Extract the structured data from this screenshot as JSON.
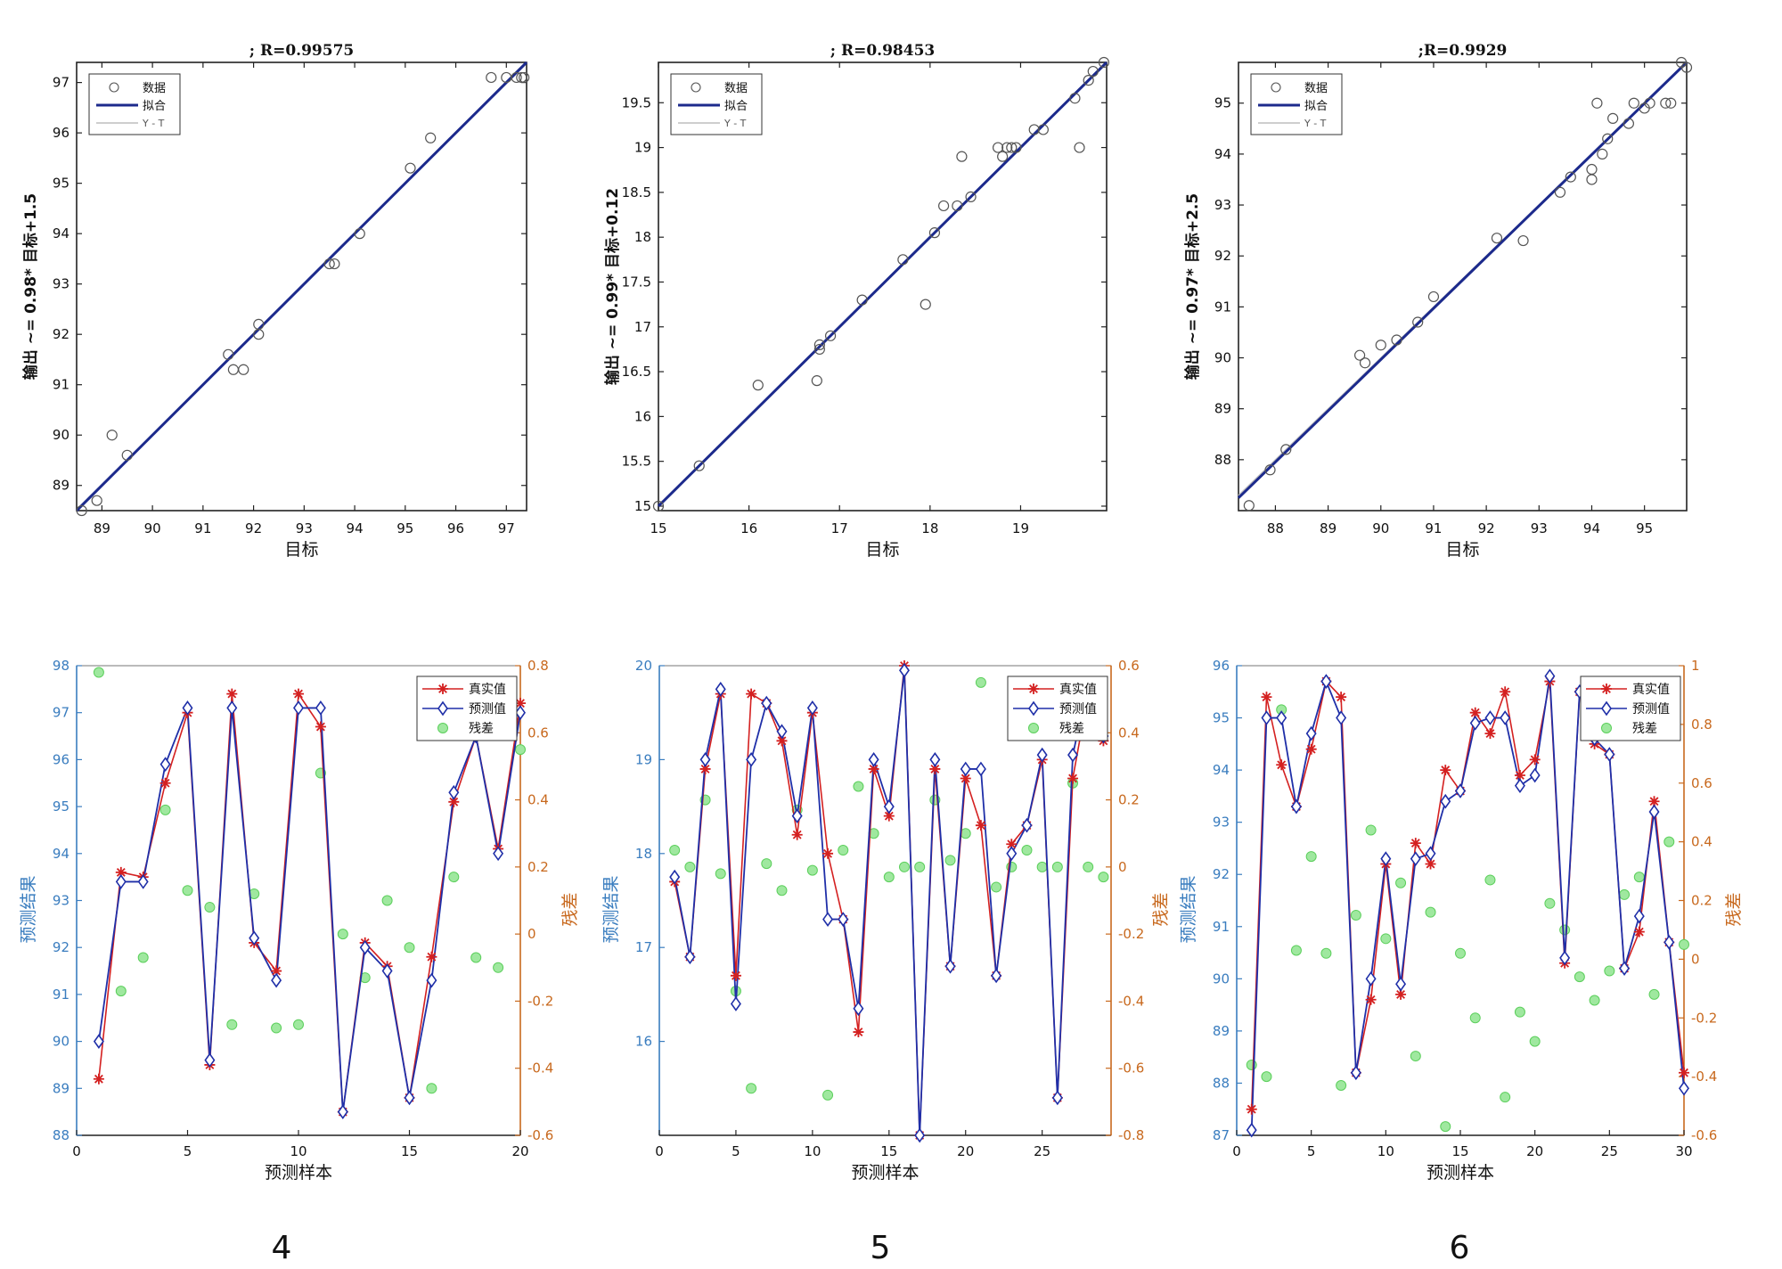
{
  "colors": {
    "fit_line": "#1c2a8c",
    "yt_line": "#bdbdbd",
    "data_marker": "#555555",
    "true_series": "#d42020",
    "pred_series": "#1f2fa8",
    "residual_fill": "#9fe89f",
    "residual_stroke": "#5ccf5c",
    "left_axis": "#3a7dbf",
    "right_axis": "#c8691e"
  },
  "regression_charts": [
    {
      "title": "; R=0.99575",
      "xlabel": "目标",
      "ylabel": "输出 ~= 0.98* 目标+1.5",
      "xticks": [
        89,
        90,
        91,
        92,
        93,
        94,
        95,
        96,
        97
      ],
      "yticks": [
        89,
        90,
        91,
        92,
        93,
        94,
        95,
        96,
        97
      ],
      "legend": [
        "数据",
        "拟合",
        "Y - T"
      ]
    },
    {
      "title": "; R=0.98453",
      "xlabel": "目标",
      "ylabel": "输出 ~= 0.99* 目标+0.12",
      "xticks": [
        15,
        16,
        17,
        18,
        19
      ],
      "yticks": [
        15,
        15.5,
        16,
        16.5,
        17,
        17.5,
        18,
        18.5,
        19,
        19.5
      ],
      "legend": [
        "数据",
        "拟合",
        "Y - T"
      ]
    },
    {
      "title": ";R=0.9929",
      "xlabel": "目标",
      "ylabel": "输出 ~= 0.97* 目标+2.5",
      "xticks": [
        88,
        89,
        90,
        91,
        92,
        93,
        94,
        95
      ],
      "yticks": [
        88,
        89,
        90,
        91,
        92,
        93,
        94,
        95
      ],
      "legend": [
        "数据",
        "拟合",
        "Y - T"
      ]
    }
  ],
  "prediction_charts": [
    {
      "xlabel": "预测样本",
      "ylabel_left": "预测结果",
      "ylabel_right": "残差",
      "xticks": [
        0,
        5,
        10,
        15,
        20
      ],
      "yticks_left": [
        88,
        89,
        90,
        91,
        92,
        93,
        94,
        95,
        96,
        97,
        98
      ],
      "yticks_right": [
        -0.6,
        -0.4,
        -0.2,
        0,
        0.2,
        0.4,
        0.6,
        0.8
      ],
      "legend": [
        "真实值",
        "预测值",
        "残差"
      ],
      "panel_label": "4"
    },
    {
      "xlabel": "预测样本",
      "ylabel_left": "预测结果",
      "ylabel_right": "残差",
      "xticks": [
        0,
        5,
        10,
        15,
        20,
        25
      ],
      "yticks_left": [
        16,
        17,
        18,
        19,
        20
      ],
      "yticks_right": [
        -0.8,
        -0.6,
        -0.4,
        -0.2,
        0,
        0.2,
        0.4,
        0.6
      ],
      "legend": [
        "真实值",
        "预测值",
        "残差"
      ],
      "panel_label": "5"
    },
    {
      "xlabel": "预测样本",
      "ylabel_left": "预测结果",
      "ylabel_right": "残差",
      "xticks": [
        0,
        5,
        10,
        15,
        20,
        25,
        30
      ],
      "yticks_left": [
        87,
        88,
        89,
        90,
        91,
        92,
        93,
        94,
        95,
        96
      ],
      "yticks_right": [
        -0.6,
        -0.4,
        -0.2,
        0,
        0.2,
        0.4,
        0.6,
        0.8,
        1
      ],
      "legend": [
        "真实值",
        "预测值",
        "残差"
      ],
      "panel_label": "6"
    }
  ],
  "chart_data": [
    {
      "type": "scatter",
      "title": "; R=0.99575",
      "xlabel": "目标",
      "ylabel": "输出 ~= 0.98* 目标+1.5",
      "xlim": [
        88.5,
        97.4
      ],
      "ylim": [
        88.5,
        97.4
      ],
      "grid": false,
      "legend_position": "top-left",
      "fit": {
        "slope": 0.98,
        "intercept": 1.5
      },
      "series": [
        {
          "name": "数据",
          "points": [
            [
              88.6,
              88.5
            ],
            [
              88.9,
              88.7
            ],
            [
              89.2,
              90.0
            ],
            [
              89.5,
              89.6
            ],
            [
              91.5,
              91.6
            ],
            [
              91.6,
              91.3
            ],
            [
              91.8,
              91.3
            ],
            [
              92.1,
              92.2
            ],
            [
              92.1,
              92.0
            ],
            [
              93.5,
              93.4
            ],
            [
              93.6,
              93.4
            ],
            [
              94.1,
              94.0
            ],
            [
              95.1,
              95.3
            ],
            [
              95.5,
              95.9
            ],
            [
              96.7,
              97.1
            ],
            [
              97.0,
              97.1
            ],
            [
              97.2,
              97.1
            ],
            [
              97.3,
              97.1
            ],
            [
              97.35,
              97.1
            ]
          ]
        },
        {
          "name": "拟合",
          "line": [
            [
              88.5,
              88.5
            ],
            [
              97.4,
              97.4
            ]
          ]
        },
        {
          "name": "Y - T",
          "line": [
            [
              88.5,
              88.5
            ],
            [
              97.4,
              97.4
            ]
          ]
        }
      ]
    },
    {
      "type": "scatter",
      "title": "; R=0.98453",
      "xlabel": "目标",
      "ylabel": "输出 ~= 0.99* 目标+0.12",
      "xlim": [
        15,
        19.95
      ],
      "ylim": [
        14.95,
        19.95
      ],
      "grid": false,
      "legend_position": "top-left",
      "fit": {
        "slope": 0.99,
        "intercept": 0.12
      },
      "series": [
        {
          "name": "数据",
          "points": [
            [
              15.0,
              15.0
            ],
            [
              15.45,
              15.45
            ],
            [
              16.1,
              16.35
            ],
            [
              16.75,
              16.4
            ],
            [
              16.78,
              16.75
            ],
            [
              16.78,
              16.8
            ],
            [
              16.9,
              16.9
            ],
            [
              17.25,
              17.3
            ],
            [
              17.7,
              17.75
            ],
            [
              17.95,
              17.25
            ],
            [
              18.05,
              18.05
            ],
            [
              18.15,
              18.35
            ],
            [
              18.3,
              18.35
            ],
            [
              18.35,
              18.9
            ],
            [
              18.45,
              18.45
            ],
            [
              18.75,
              19.0
            ],
            [
              18.8,
              18.9
            ],
            [
              18.85,
              19.0
            ],
            [
              18.9,
              19.0
            ],
            [
              18.95,
              19.0
            ],
            [
              19.15,
              19.2
            ],
            [
              19.25,
              19.2
            ],
            [
              19.6,
              19.55
            ],
            [
              19.65,
              19.0
            ],
            [
              19.75,
              19.75
            ],
            [
              19.8,
              19.85
            ],
            [
              19.92,
              19.95
            ]
          ]
        },
        {
          "name": "拟合",
          "line": [
            [
              15.0,
              15.0
            ],
            [
              19.95,
              19.95
            ]
          ]
        },
        {
          "name": "Y - T",
          "line": [
            [
              15.0,
              15.0
            ],
            [
              19.95,
              19.95
            ]
          ]
        }
      ]
    },
    {
      "type": "scatter",
      "title": ";R=0.9929",
      "xlabel": "目标",
      "ylabel": "输出 ~= 0.97* 目标+2.5",
      "xlim": [
        87.3,
        95.8
      ],
      "ylim": [
        87.0,
        95.8
      ],
      "grid": false,
      "legend_position": "top-left",
      "fit": {
        "slope": 0.97,
        "intercept": 2.5
      },
      "series": [
        {
          "name": "数据",
          "points": [
            [
              87.5,
              87.1
            ],
            [
              87.9,
              87.8
            ],
            [
              88.2,
              88.2
            ],
            [
              89.6,
              90.05
            ],
            [
              89.7,
              89.9
            ],
            [
              90.0,
              90.25
            ],
            [
              90.3,
              90.35
            ],
            [
              90.7,
              90.7
            ],
            [
              91.0,
              91.2
            ],
            [
              92.2,
              92.35
            ],
            [
              92.7,
              92.3
            ],
            [
              93.4,
              93.25
            ],
            [
              93.6,
              93.55
            ],
            [
              94.0,
              93.5
            ],
            [
              94.0,
              93.7
            ],
            [
              94.1,
              95.0
            ],
            [
              94.2,
              94.0
            ],
            [
              94.3,
              94.3
            ],
            [
              94.4,
              94.7
            ],
            [
              94.7,
              94.6
            ],
            [
              94.8,
              95.0
            ],
            [
              95.0,
              94.9
            ],
            [
              95.1,
              95.0
            ],
            [
              95.4,
              95.0
            ],
            [
              95.5,
              95.0
            ],
            [
              95.7,
              95.8
            ],
            [
              95.8,
              95.7
            ]
          ]
        },
        {
          "name": "拟合",
          "line": [
            [
              87.3,
              87.25
            ],
            [
              95.8,
              95.8
            ]
          ]
        },
        {
          "name": "Y - T",
          "line": [
            [
              87.3,
              87.3
            ],
            [
              95.8,
              95.8
            ]
          ]
        }
      ]
    },
    {
      "type": "line",
      "xlabel": "预测样本",
      "ylabel": "预测结果",
      "ylabel_right": "残差",
      "xlim": [
        0,
        20
      ],
      "ylim": [
        88,
        98
      ],
      "ylim_right": [
        -0.6,
        0.8
      ],
      "grid": false,
      "legend_position": "top-right",
      "x": [
        1,
        2,
        3,
        4,
        5,
        6,
        7,
        8,
        9,
        10,
        11,
        12,
        13,
        14,
        15,
        16,
        17,
        18,
        19,
        20
      ],
      "series": [
        {
          "name": "真实值",
          "axis": "left",
          "values": [
            89.2,
            93.6,
            93.5,
            95.5,
            97.0,
            89.5,
            97.4,
            92.1,
            91.5,
            97.4,
            96.7,
            88.5,
            92.1,
            91.6,
            88.8,
            91.8,
            95.1,
            96.5,
            94.1,
            97.2
          ]
        },
        {
          "name": "预测值",
          "axis": "left",
          "values": [
            90.0,
            93.4,
            93.4,
            95.9,
            97.1,
            89.6,
            97.1,
            92.2,
            91.3,
            97.1,
            97.1,
            88.5,
            92.0,
            91.5,
            88.8,
            91.3,
            95.3,
            96.5,
            94.0,
            97.0
          ]
        },
        {
          "name": "残差",
          "axis": "right",
          "type": "scatter",
          "values": [
            0.78,
            -0.17,
            -0.07,
            0.37,
            0.13,
            0.08,
            -0.27,
            0.12,
            -0.28,
            -0.27,
            0.48,
            0.0,
            -0.13,
            0.1,
            -0.04,
            -0.46,
            0.17,
            -0.07,
            -0.1,
            0.55
          ]
        }
      ]
    },
    {
      "type": "line",
      "xlabel": "预测样本",
      "ylabel": "预测结果",
      "ylabel_right": "残差",
      "xlim": [
        0,
        29.5
      ],
      "ylim": [
        15,
        20
      ],
      "ylim_right": [
        -0.8,
        0.6
      ],
      "grid": false,
      "legend_position": "top-right",
      "x": [
        1,
        2,
        3,
        4,
        5,
        6,
        7,
        8,
        9,
        10,
        11,
        12,
        13,
        14,
        15,
        16,
        17,
        18,
        19,
        20,
        21,
        22,
        23,
        24,
        25,
        26,
        27,
        28,
        29
      ],
      "series": [
        {
          "name": "真实值",
          "axis": "left",
          "values": [
            17.7,
            16.9,
            18.9,
            19.7,
            16.7,
            19.7,
            19.6,
            19.2,
            18.2,
            19.5,
            18.0,
            17.3,
            16.1,
            18.9,
            18.4,
            20.0,
            15.0,
            18.9,
            16.8,
            18.8,
            18.3,
            16.7,
            18.1,
            18.3,
            19.0,
            15.4,
            18.8,
            19.7,
            19.2
          ]
        },
        {
          "name": "预测值",
          "axis": "left",
          "values": [
            17.75,
            16.9,
            19.0,
            19.75,
            16.4,
            19.0,
            19.6,
            19.3,
            18.4,
            19.55,
            17.3,
            17.3,
            16.35,
            19.0,
            18.5,
            19.95,
            15.0,
            19.0,
            16.8,
            18.9,
            18.9,
            16.7,
            18.0,
            18.3,
            19.05,
            15.4,
            19.05,
            19.8,
            19.25
          ]
        },
        {
          "name": "残差",
          "axis": "right",
          "type": "scatter",
          "values": [
            0.05,
            0.0,
            0.2,
            -0.02,
            -0.37,
            -0.66,
            0.01,
            -0.07,
            0.17,
            -0.01,
            -0.68,
            0.05,
            0.24,
            0.1,
            -0.03,
            0.0,
            0.0,
            0.2,
            0.02,
            0.1,
            0.55,
            -0.06,
            0.0,
            0.05,
            0.0,
            0.0,
            0.25,
            0.0,
            -0.03
          ]
        }
      ]
    },
    {
      "type": "line",
      "xlabel": "预测样本",
      "ylabel": "预测结果",
      "ylabel_right": "残差",
      "xlim": [
        0,
        30
      ],
      "ylim": [
        87,
        96
      ],
      "ylim_right": [
        -0.6,
        1.0
      ],
      "grid": false,
      "legend_position": "top-right",
      "x": [
        1,
        2,
        3,
        4,
        5,
        6,
        7,
        8,
        9,
        10,
        11,
        12,
        13,
        14,
        15,
        16,
        17,
        18,
        19,
        20,
        21,
        22,
        23,
        24,
        25,
        26,
        27,
        28,
        29,
        30
      ],
      "series": [
        {
          "name": "真实值",
          "axis": "left",
          "values": [
            87.5,
            95.4,
            94.1,
            93.3,
            94.4,
            95.7,
            95.4,
            88.2,
            89.6,
            92.2,
            89.7,
            92.6,
            92.2,
            94.0,
            93.6,
            95.1,
            94.7,
            95.5,
            93.9,
            94.2,
            95.7,
            90.3,
            95.5,
            94.5,
            94.3,
            90.2,
            90.9,
            93.4,
            90.7,
            88.2
          ]
        },
        {
          "name": "预测值",
          "axis": "left",
          "values": [
            87.1,
            95.0,
            95.0,
            93.3,
            94.7,
            95.7,
            95.0,
            88.2,
            90.0,
            92.3,
            89.9,
            92.3,
            92.4,
            93.4,
            93.6,
            94.9,
            95.0,
            95.0,
            93.7,
            93.9,
            95.8,
            90.4,
            95.5,
            94.6,
            94.3,
            90.2,
            91.2,
            93.2,
            90.7,
            87.9
          ]
        },
        {
          "name": "残差",
          "axis": "right",
          "type": "scatter",
          "values": [
            -0.36,
            -0.4,
            0.85,
            0.03,
            0.35,
            0.02,
            -0.43,
            0.15,
            0.44,
            0.07,
            0.26,
            -0.33,
            0.16,
            -0.57,
            0.02,
            -0.2,
            0.27,
            -0.47,
            -0.18,
            -0.28,
            0.19,
            0.1,
            -0.06,
            -0.14,
            -0.04,
            0.22,
            0.28,
            -0.12,
            0.4,
            0.05
          ]
        }
      ]
    }
  ]
}
